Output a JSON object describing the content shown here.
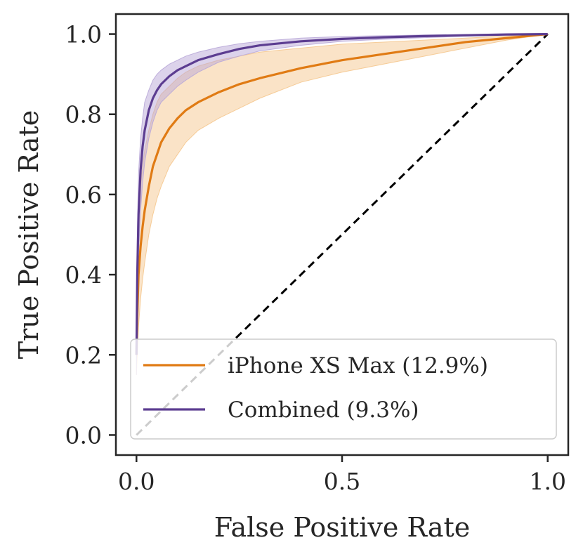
{
  "chart_data": {
    "type": "line",
    "title": "",
    "xlabel": "False Positive Rate",
    "ylabel": "True Positive Rate",
    "xlim": [
      -0.05,
      1.05
    ],
    "ylim": [
      -0.05,
      1.05
    ],
    "xticks": [
      0.0,
      0.5,
      1.0
    ],
    "xtick_labels": [
      "0.0",
      "0.5",
      "1.0"
    ],
    "yticks": [
      0.0,
      0.2,
      0.4,
      0.6,
      0.8,
      1.0
    ],
    "ytick_labels": [
      "0.0",
      "0.2",
      "0.4",
      "0.6",
      "0.8",
      "1.0"
    ],
    "grid": false,
    "legend_position": "lower-right",
    "series": [
      {
        "name": "iPhone XS Max (12.9%)",
        "color": "#e07b14",
        "band_color": "#f5c88f",
        "x": [
          0,
          0.002,
          0.005,
          0.01,
          0.015,
          0.02,
          0.03,
          0.04,
          0.05,
          0.06,
          0.08,
          0.1,
          0.12,
          0.15,
          0.2,
          0.25,
          0.3,
          0.4,
          0.5,
          0.6,
          0.7,
          0.8,
          0.9,
          1.0
        ],
        "y": [
          0.2,
          0.3,
          0.4,
          0.47,
          0.52,
          0.56,
          0.62,
          0.67,
          0.7,
          0.73,
          0.765,
          0.79,
          0.81,
          0.83,
          0.855,
          0.875,
          0.89,
          0.915,
          0.935,
          0.95,
          0.965,
          0.98,
          0.99,
          1.0
        ],
        "lower": [
          0.15,
          0.2,
          0.27,
          0.34,
          0.39,
          0.43,
          0.5,
          0.55,
          0.59,
          0.62,
          0.67,
          0.7,
          0.73,
          0.76,
          0.79,
          0.815,
          0.84,
          0.88,
          0.905,
          0.925,
          0.945,
          0.965,
          0.985,
          1.0
        ],
        "upper": [
          0.27,
          0.42,
          0.55,
          0.62,
          0.67,
          0.71,
          0.76,
          0.8,
          0.83,
          0.85,
          0.87,
          0.89,
          0.905,
          0.92,
          0.935,
          0.945,
          0.955,
          0.965,
          0.975,
          0.98,
          0.985,
          0.99,
          0.995,
          1.0
        ]
      },
      {
        "name": "Combined (9.3%)",
        "color": "#5c3d91",
        "band_color": "#b9a8d8",
        "x": [
          0,
          0.002,
          0.005,
          0.01,
          0.015,
          0.02,
          0.03,
          0.04,
          0.05,
          0.06,
          0.08,
          0.1,
          0.12,
          0.15,
          0.2,
          0.25,
          0.3,
          0.4,
          0.5,
          0.6,
          0.7,
          0.8,
          0.9,
          1.0
        ],
        "y": [
          0.2,
          0.4,
          0.55,
          0.66,
          0.72,
          0.76,
          0.81,
          0.84,
          0.86,
          0.875,
          0.895,
          0.91,
          0.92,
          0.935,
          0.95,
          0.963,
          0.972,
          0.982,
          0.988,
          0.992,
          0.995,
          0.997,
          0.999,
          1.0
        ],
        "lower": [
          0.15,
          0.3,
          0.45,
          0.56,
          0.63,
          0.68,
          0.74,
          0.78,
          0.81,
          0.83,
          0.85,
          0.87,
          0.885,
          0.905,
          0.93,
          0.945,
          0.958,
          0.972,
          0.982,
          0.987,
          0.991,
          0.995,
          0.998,
          1.0
        ],
        "upper": [
          0.27,
          0.5,
          0.65,
          0.74,
          0.79,
          0.83,
          0.86,
          0.885,
          0.9,
          0.91,
          0.925,
          0.935,
          0.945,
          0.955,
          0.967,
          0.976,
          0.982,
          0.99,
          0.994,
          0.996,
          0.998,
          0.999,
          1.0,
          1.0
        ]
      }
    ],
    "reference_line": {
      "x": [
        0,
        1
      ],
      "y": [
        0,
        1
      ],
      "style": "dashed",
      "color": "#000000"
    }
  }
}
